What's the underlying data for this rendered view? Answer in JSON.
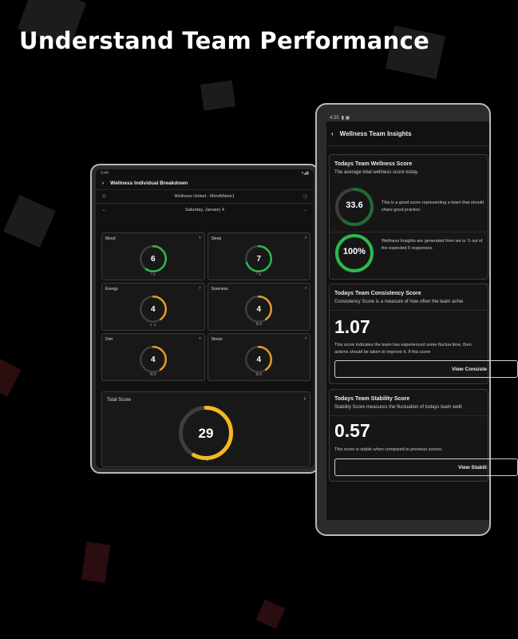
{
  "headline": "Understand Team Performance",
  "colors": {
    "green": "#2db84d",
    "dark_green": "#1e6b35",
    "orange": "#e09a2e",
    "yellow": "#f5b820",
    "track": "#3d3d3d"
  },
  "tablet_left": {
    "status_time": "2:44",
    "title": "Wellness Individual Breakdown",
    "team_athlete": "Wellness United - MirnAthlete1",
    "date": "Saturday, January 4",
    "cards": [
      {
        "label": "Mood",
        "value": "6",
        "trend": "^ 1",
        "color": "#2db84d",
        "fraction": 0.6
      },
      {
        "label": "Sleep",
        "value": "7",
        "trend": "^ 2",
        "color": "#2db84d",
        "fraction": 0.7
      },
      {
        "label": "Energy",
        "value": "4",
        "trend": "v -1",
        "color": "#e09a2e",
        "fraction": 0.4
      },
      {
        "label": "Soreness",
        "value": "4",
        "trend": "⇆ 0",
        "color": "#e09a2e",
        "fraction": 0.4
      },
      {
        "label": "Diet",
        "value": "4",
        "trend": "⇆ 0",
        "color": "#e09a2e",
        "fraction": 0.4
      },
      {
        "label": "Stress",
        "value": "4",
        "trend": "⇆ 0",
        "color": "#e09a2e",
        "fraction": 0.4
      }
    ],
    "total": {
      "label": "Total Score",
      "value": "29",
      "trend": "^ 2",
      "color": "#f5b820",
      "fraction": 0.58
    }
  },
  "tablet_right": {
    "status_time": "4:35",
    "title": "Wellness Team Insights",
    "wellness": {
      "title": "Todays Team Wellness Score",
      "subtitle": "The average total wellness score today.",
      "score": "33.6",
      "score_fraction": 0.6,
      "score_text": "This is a good score representing a team that should share good practice.",
      "percent": "100%",
      "percent_fraction": 1.0,
      "percent_text": "Wellness Insights are generated from we is: 5 out of the expected 5 responses."
    },
    "consistency": {
      "title": "Todays Team Consistency Score",
      "subtitle": "Consistency Score is a measure of how often the team achie",
      "value": "1.07",
      "text": "This score indicates the team has experienced some fluctua time, then actions should be taken to improve it. If this score",
      "button": "View Consiste"
    },
    "stability": {
      "title": "Todays Team Stability Score",
      "subtitle": "Stability Score measures the fluctuation of todays team welli",
      "value": "0.57",
      "text": "This score is stable when compared to previous scores.",
      "button": "View Stabili"
    }
  }
}
